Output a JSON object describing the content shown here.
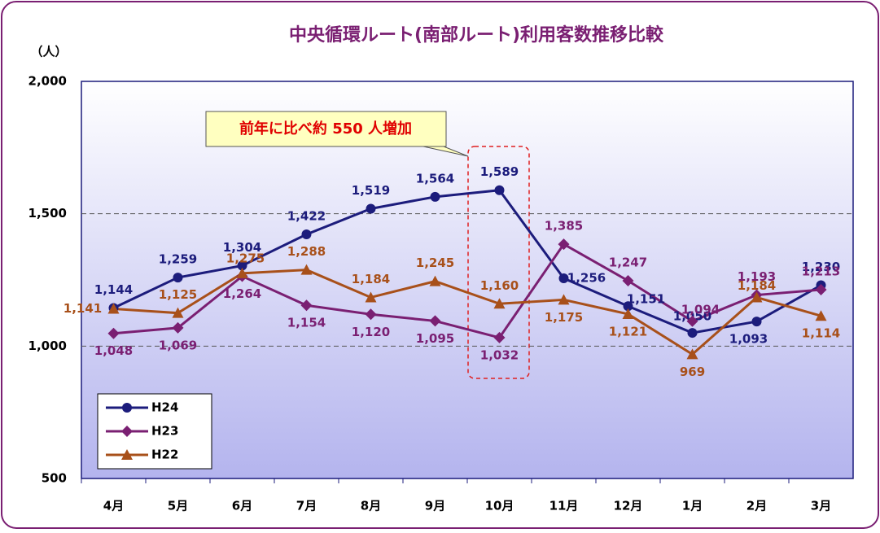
{
  "chart_data": {
    "type": "line",
    "title": "中央循環ルート(南部ルート)利用客数推移比較",
    "y_label": "（人）",
    "annotation": "前年に比べ約 550 人増加",
    "categories": [
      "4月",
      "5月",
      "6月",
      "7月",
      "8月",
      "9月",
      "10月",
      "11月",
      "12月",
      "1月",
      "2月",
      "3月"
    ],
    "ylim": [
      500,
      2000
    ],
    "yticks": [
      500,
      {
        "value": 1000,
        "label": "1,000"
      },
      {
        "value": 1500,
        "label": "1,500"
      },
      {
        "value": 2000,
        "label": "2,000"
      }
    ],
    "grid": true,
    "legend": "lower left",
    "series": [
      {
        "name": "H24",
        "color": "#1c1c7c",
        "marker": "circle",
        "values": [
          1144,
          1259,
          1304,
          1422,
          1519,
          1564,
          1589,
          1256,
          1151,
          1050,
          1093,
          1230
        ],
        "value_labels": [
          "1,144",
          "1,259",
          "1,304",
          "1,422",
          "1,519",
          "1,564",
          "1,589",
          "1,256",
          "1,151",
          "1,050",
          "1,093",
          "1,230"
        ]
      },
      {
        "name": "H23",
        "color": "#7a1f72",
        "marker": "diamond",
        "values": [
          1048,
          1069,
          1264,
          1154,
          1120,
          1095,
          1032,
          1385,
          1247,
          1094,
          1193,
          1213
        ],
        "value_labels": [
          "1,048",
          "1,069",
          "1,264",
          "1,154",
          "1,120",
          "1,095",
          "1,032",
          "1,385",
          "1,247",
          "1,094",
          "1,193",
          "1,213"
        ]
      },
      {
        "name": "H22",
        "color": "#a8501a",
        "marker": "triangle",
        "values": [
          1141,
          1125,
          1275,
          1288,
          1184,
          1245,
          1160,
          1175,
          1121,
          969,
          1184,
          1114
        ],
        "value_labels": [
          "1,141",
          "1,125",
          "1,275",
          "1,288",
          "1,184",
          "1,245",
          "1,160",
          "1,175",
          "1,121",
          "969",
          "1,184",
          "1,114"
        ]
      }
    ]
  }
}
